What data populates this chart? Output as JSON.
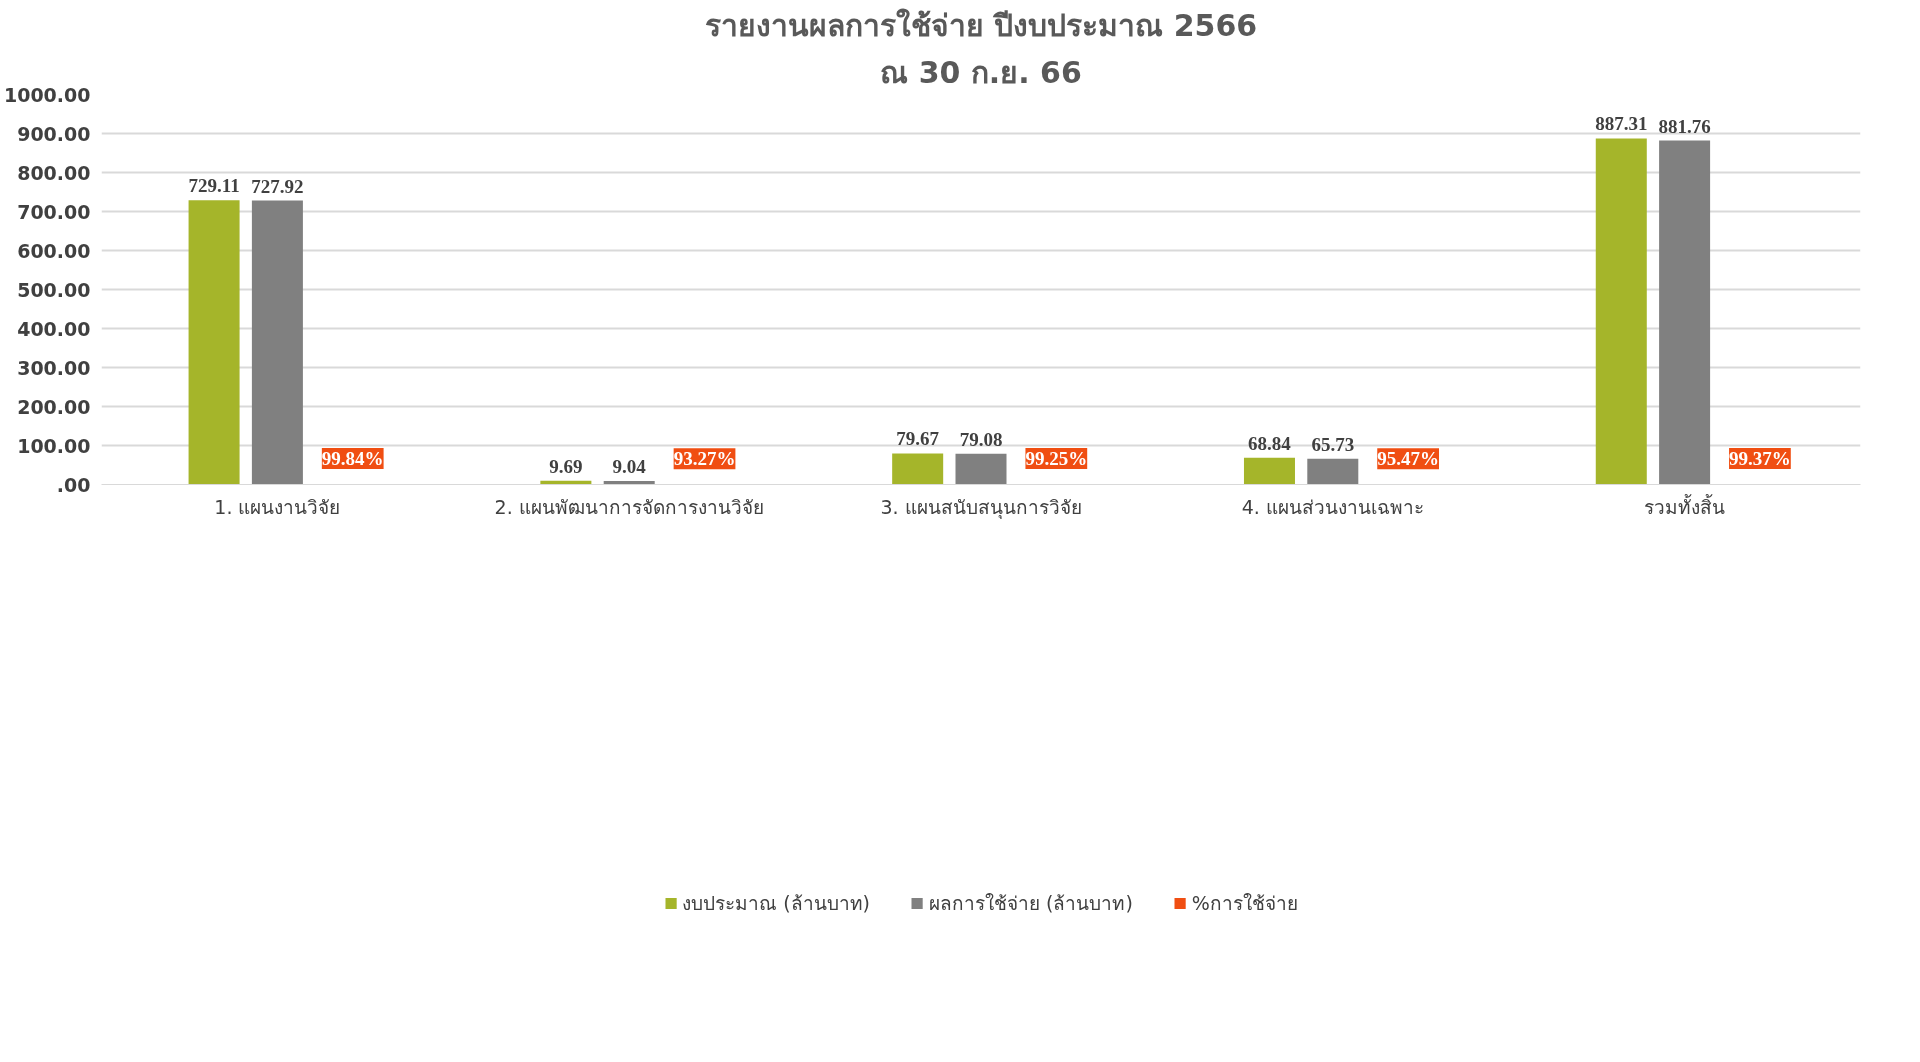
{
  "chart_data": {
    "type": "bar",
    "title": "รายงานผลการใช้จ่าย ปีงบประมาณ 2566",
    "subtitle": "ณ 30 ก.ย. 66",
    "categories": [
      "1. แผนงานวิจัย",
      "2. แผนพัฒนาการจัดการงานวิจัย",
      "3. แผนสนับสนุนการวิจัย",
      "4. แผนส่วนงานเฉพาะ",
      "รวมทั้งสิ้น"
    ],
    "series": [
      {
        "name": "งบประมาณ (ล้านบาท)",
        "color": "#a5b52a",
        "values": [
          729.11,
          9.69,
          79.67,
          68.84,
          887.31
        ],
        "value_labels": [
          "729.11",
          "9.69",
          "79.67",
          "68.84",
          "887.31"
        ]
      },
      {
        "name": "ผลการใช้จ่าย (ล้านบาท)",
        "color": "#808080",
        "values": [
          727.92,
          9.04,
          79.08,
          65.73,
          881.76
        ],
        "value_labels": [
          "727.92",
          "9.04",
          "79.08",
          "65.73",
          "881.76"
        ]
      },
      {
        "name": "%การใช้จ่าย",
        "color": "#f04e12",
        "values": [
          0.9984,
          0.9327,
          0.9925,
          0.9547,
          0.9937
        ],
        "value_labels": [
          "99.84%",
          "93.27%",
          "99.25%",
          "95.47%",
          "99.37%"
        ]
      }
    ],
    "ylim": [
      0,
      1000
    ],
    "yticks": [
      {
        "value": 0,
        "label": ".00"
      },
      {
        "value": 100,
        "label": "100.00"
      },
      {
        "value": 200,
        "label": "200.00"
      },
      {
        "value": 300,
        "label": "300.00"
      },
      {
        "value": 400,
        "label": "400.00"
      },
      {
        "value": 500,
        "label": "500.00"
      },
      {
        "value": 600,
        "label": "600.00"
      },
      {
        "value": 700,
        "label": "700.00"
      },
      {
        "value": 800,
        "label": "800.00"
      },
      {
        "value": 900,
        "label": "900.00"
      },
      {
        "value": 1000,
        "label": "1000.00"
      }
    ],
    "grid": "y",
    "legend": "bottom"
  }
}
